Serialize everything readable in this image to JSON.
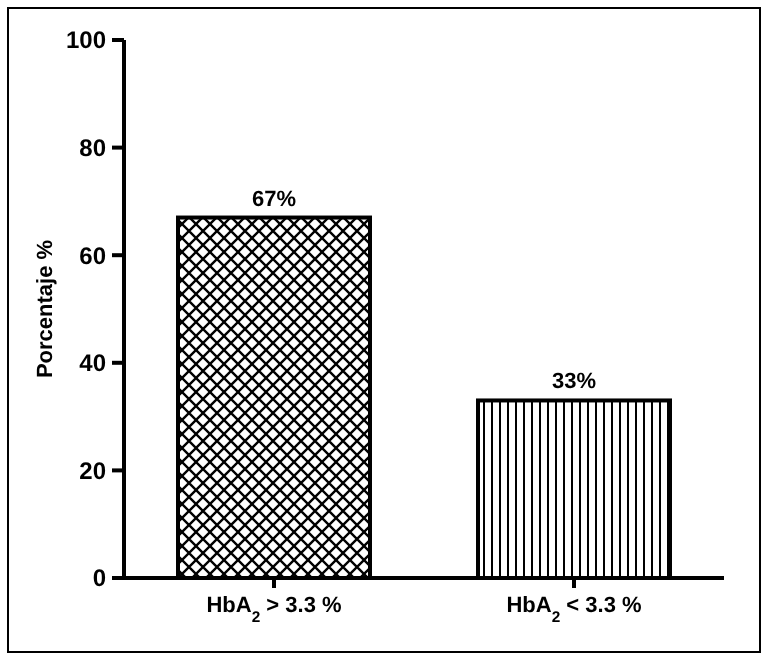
{
  "chart_data": {
    "type": "bar",
    "ylabel": "Porcentaje %",
    "categories": [
      "HbA$_{2}$ > 3.3 %",
      "HbA$_{2}$ < 3.3 %"
    ],
    "values": [
      67,
      33
    ],
    "value_labels": [
      "67%",
      "33%"
    ],
    "colors": [
      "#000000",
      "#000000"
    ],
    "ylim": [
      0,
      100
    ],
    "yticks": [
      0,
      20,
      40,
      60,
      80,
      100
    ]
  }
}
